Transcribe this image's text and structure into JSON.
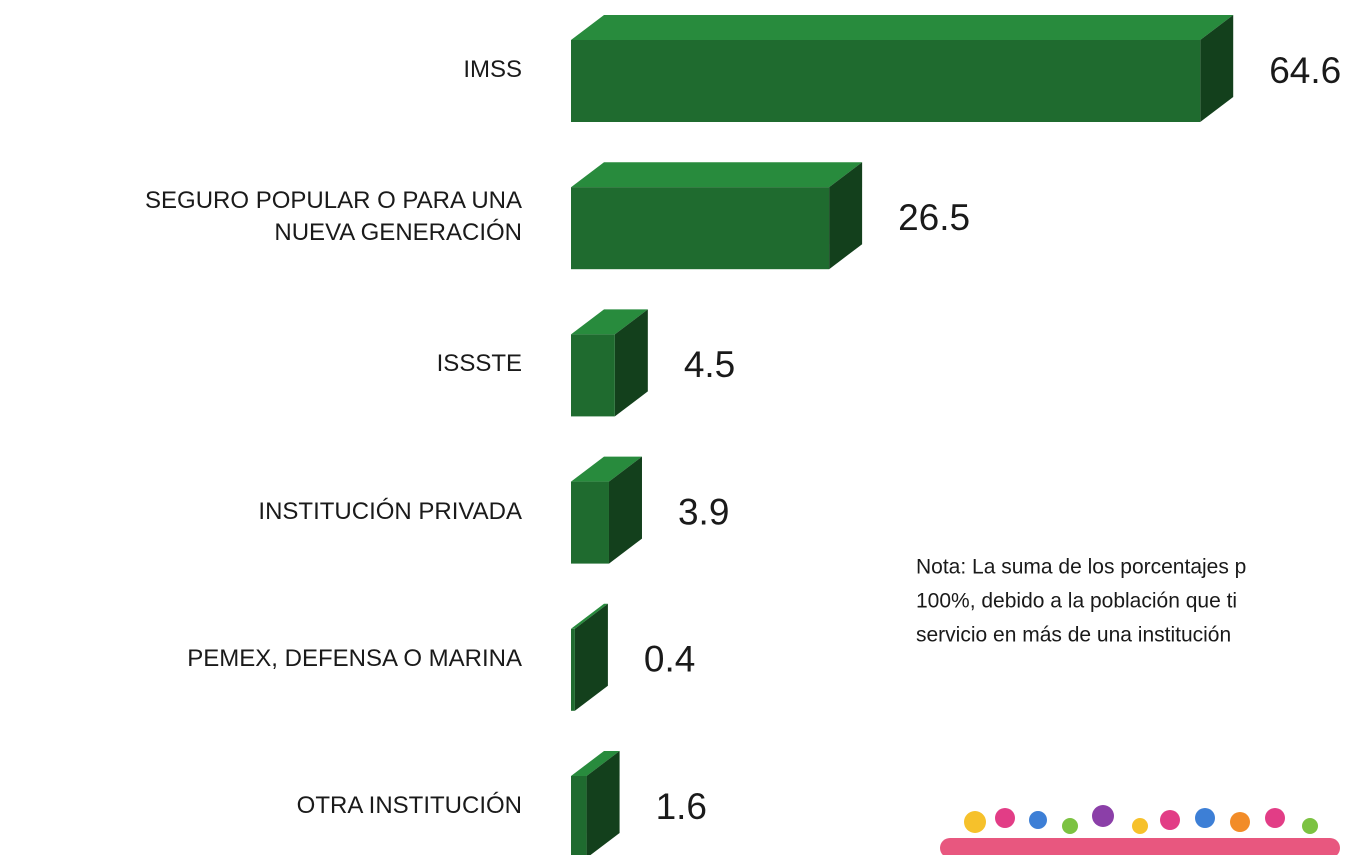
{
  "chart_data": {
    "type": "bar",
    "orientation": "horizontal",
    "categories": [
      "IMSS",
      "SEGURO POPULAR  O PARA UNA\nNUEVA GENERACIÓN",
      "ISSSTE",
      "INSTITUCIÓN PRIVADA",
      "PEMEX, DEFENSA O MARINA",
      "OTRA INSTITUCIÓN"
    ],
    "values": [
      64.6,
      26.5,
      4.5,
      3.9,
      0.4,
      1.6
    ],
    "color": "#1f6b2f",
    "note": [
      "Nota: La suma de los porcentajes p",
      "100%, debido a la población que ti",
      "servicio en más de una institución"
    ]
  }
}
